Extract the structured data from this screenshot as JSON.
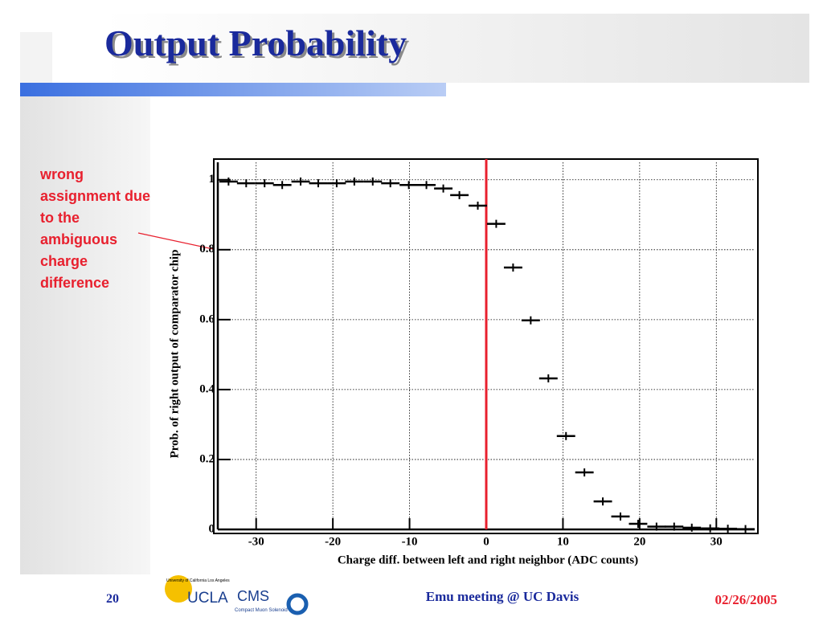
{
  "slide": {
    "title": "Output Probability",
    "annotation": "wrong assignment due to the ambiguous charge difference",
    "page_number": "20",
    "footer": "Emu meeting @ UC Davis",
    "date": "02/26/2005",
    "logo": {
      "university": "University of California Los Angeles",
      "ucla": "UCLA",
      "cms": "CMS",
      "cms_full": "Compact Muon Solenoid"
    }
  },
  "chart_data": {
    "type": "scatter",
    "x_label": "Charge diff. between left and right neighbor (ADC counts)",
    "y_label": "Prob. of right output of comparator chip",
    "x": [
      -33.6,
      -31.3,
      -28.9,
      -26.6,
      -24.2,
      -21.9,
      -19.5,
      -17.2,
      -14.8,
      -12.5,
      -10.1,
      -7.8,
      -5.6,
      -3.5,
      -1.1,
      1.3,
      3.5,
      5.8,
      8.1,
      10.4,
      12.8,
      15.2,
      17.5,
      19.8,
      22.2,
      24.5,
      26.8,
      29.2,
      31.5,
      33.8
    ],
    "values": [
      0.995,
      0.99,
      0.99,
      0.985,
      0.995,
      0.99,
      0.99,
      0.995,
      0.995,
      0.99,
      0.985,
      0.985,
      0.975,
      0.956,
      0.926,
      0.874,
      0.749,
      0.598,
      0.432,
      0.267,
      0.163,
      0.08,
      0.037,
      0.016,
      0.008,
      0.008,
      0.005,
      0.003,
      0.002,
      0.001
    ],
    "xerr": 1.2,
    "color": "#000000",
    "xlim": [
      -35,
      35
    ],
    "ylim": [
      0,
      1.05
    ],
    "xticks": [
      -30,
      -20,
      -10,
      0,
      10,
      20,
      30
    ],
    "yticks": [
      0,
      0.2,
      0.4,
      0.6,
      0.8,
      1
    ],
    "grid": true,
    "vline": {
      "x": 0,
      "color": "#e8202e"
    }
  }
}
